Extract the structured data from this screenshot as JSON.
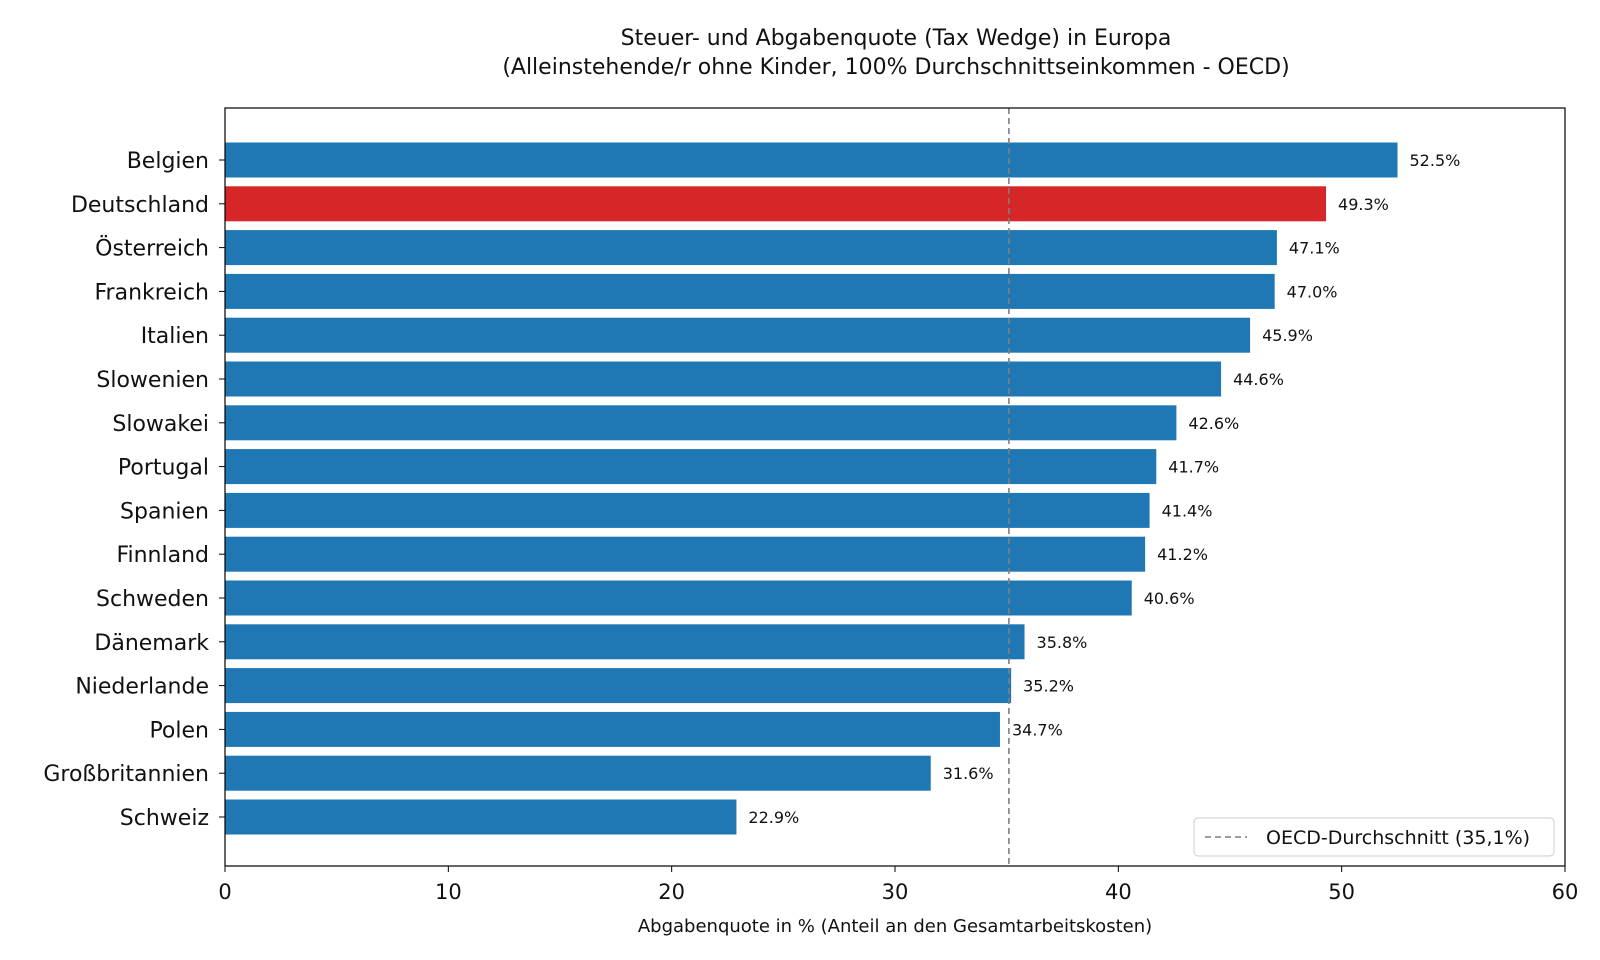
{
  "chart_data": {
    "type": "bar",
    "orientation": "horizontal",
    "title": "Steuer- und Abgabenquote (Tax Wedge) in Europa",
    "subtitle": "(Alleinstehende/r ohne Kinder, 100% Durchschnittseinkommen - OECD)",
    "xlabel": "Abgabenquote in % (Anteil an den Gesamtarbeitskosten)",
    "ylabel": "",
    "xlim": [
      0,
      60
    ],
    "xticks": [
      0,
      10,
      20,
      30,
      40,
      50,
      60
    ],
    "categories": [
      "Belgien",
      "Deutschland",
      "Österreich",
      "Frankreich",
      "Italien",
      "Slowenien",
      "Slowakei",
      "Portugal",
      "Spanien",
      "Finnland",
      "Schweden",
      "Dänemark",
      "Niederlande",
      "Polen",
      "Großbritannien",
      "Schweiz"
    ],
    "values": [
      52.5,
      49.3,
      47.1,
      47.0,
      45.9,
      44.6,
      42.6,
      41.7,
      41.4,
      41.2,
      40.6,
      35.8,
      35.2,
      34.7,
      31.6,
      22.9
    ],
    "value_labels": [
      "52.5%",
      "49.3%",
      "47.1%",
      "47.0%",
      "45.9%",
      "44.6%",
      "42.6%",
      "41.7%",
      "41.4%",
      "41.2%",
      "40.6%",
      "35.8%",
      "35.2%",
      "34.7%",
      "31.6%",
      "22.9%"
    ],
    "bar_color": "#1f77b4",
    "highlight": {
      "category": "Deutschland",
      "color": "#d62728"
    },
    "reference_line": {
      "value": 35.1,
      "label": "OECD-Durchschnitt (35,1%)",
      "color": "#7f7f7f",
      "style": "dashed"
    },
    "legend_placement": "bottom-right",
    "grid": false
  }
}
